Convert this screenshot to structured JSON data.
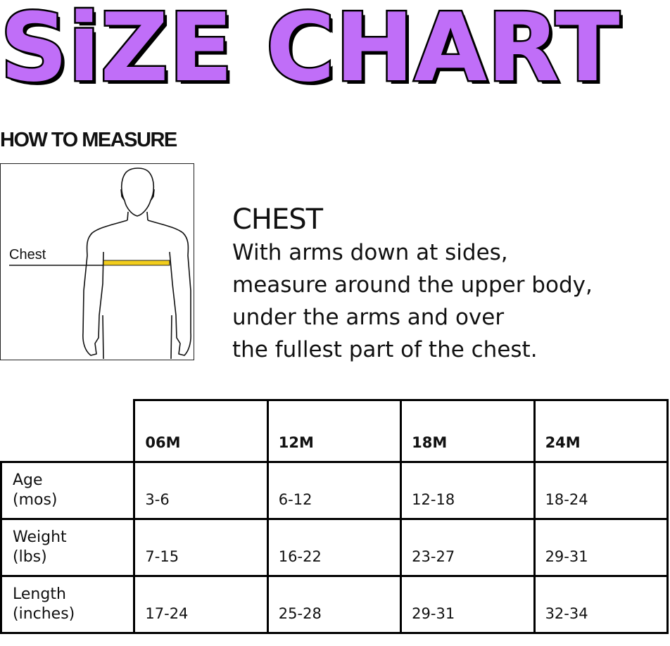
{
  "title": "SiZE CHART",
  "section_heading": "HOW TO MEASURE",
  "figure": {
    "label": "Chest",
    "tape_color": "#F2CD1C"
  },
  "measurement": {
    "heading": "CHEST",
    "lines": [
      "With arms down at sides,",
      "measure around the upper body,",
      "under the arms and over",
      "the fullest part of the chest."
    ]
  },
  "colors": {
    "title_fill": "#C06EF8",
    "outline": "#000000"
  },
  "table": {
    "columns": [
      "06M",
      "12M",
      "18M",
      "24M"
    ],
    "rows": [
      {
        "label": [
          "Age",
          "(mos)"
        ],
        "values": [
          "3-6",
          "6-12",
          "12-18",
          "18-24"
        ]
      },
      {
        "label": [
          "Weight",
          "(lbs)"
        ],
        "values": [
          "7-15",
          "16-22",
          "23-27",
          "29-31"
        ]
      },
      {
        "label": [
          "Length",
          "(inches)"
        ],
        "values": [
          "17-24",
          "25-28",
          "29-31",
          "32-34"
        ]
      }
    ]
  }
}
